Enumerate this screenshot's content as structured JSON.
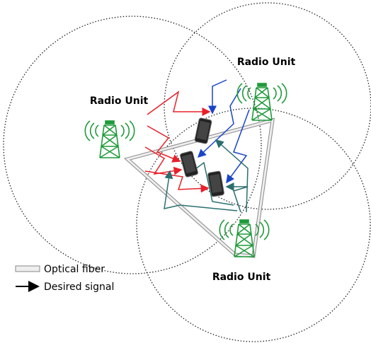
{
  "nodes": [
    {
      "label": "Radio Unit"
    },
    {
      "label": "Radio Unit"
    },
    {
      "label": "Radio Unit"
    }
  ],
  "legend": [
    {
      "label": "Optical fiber"
    },
    {
      "label": "Desired signal"
    }
  ]
}
